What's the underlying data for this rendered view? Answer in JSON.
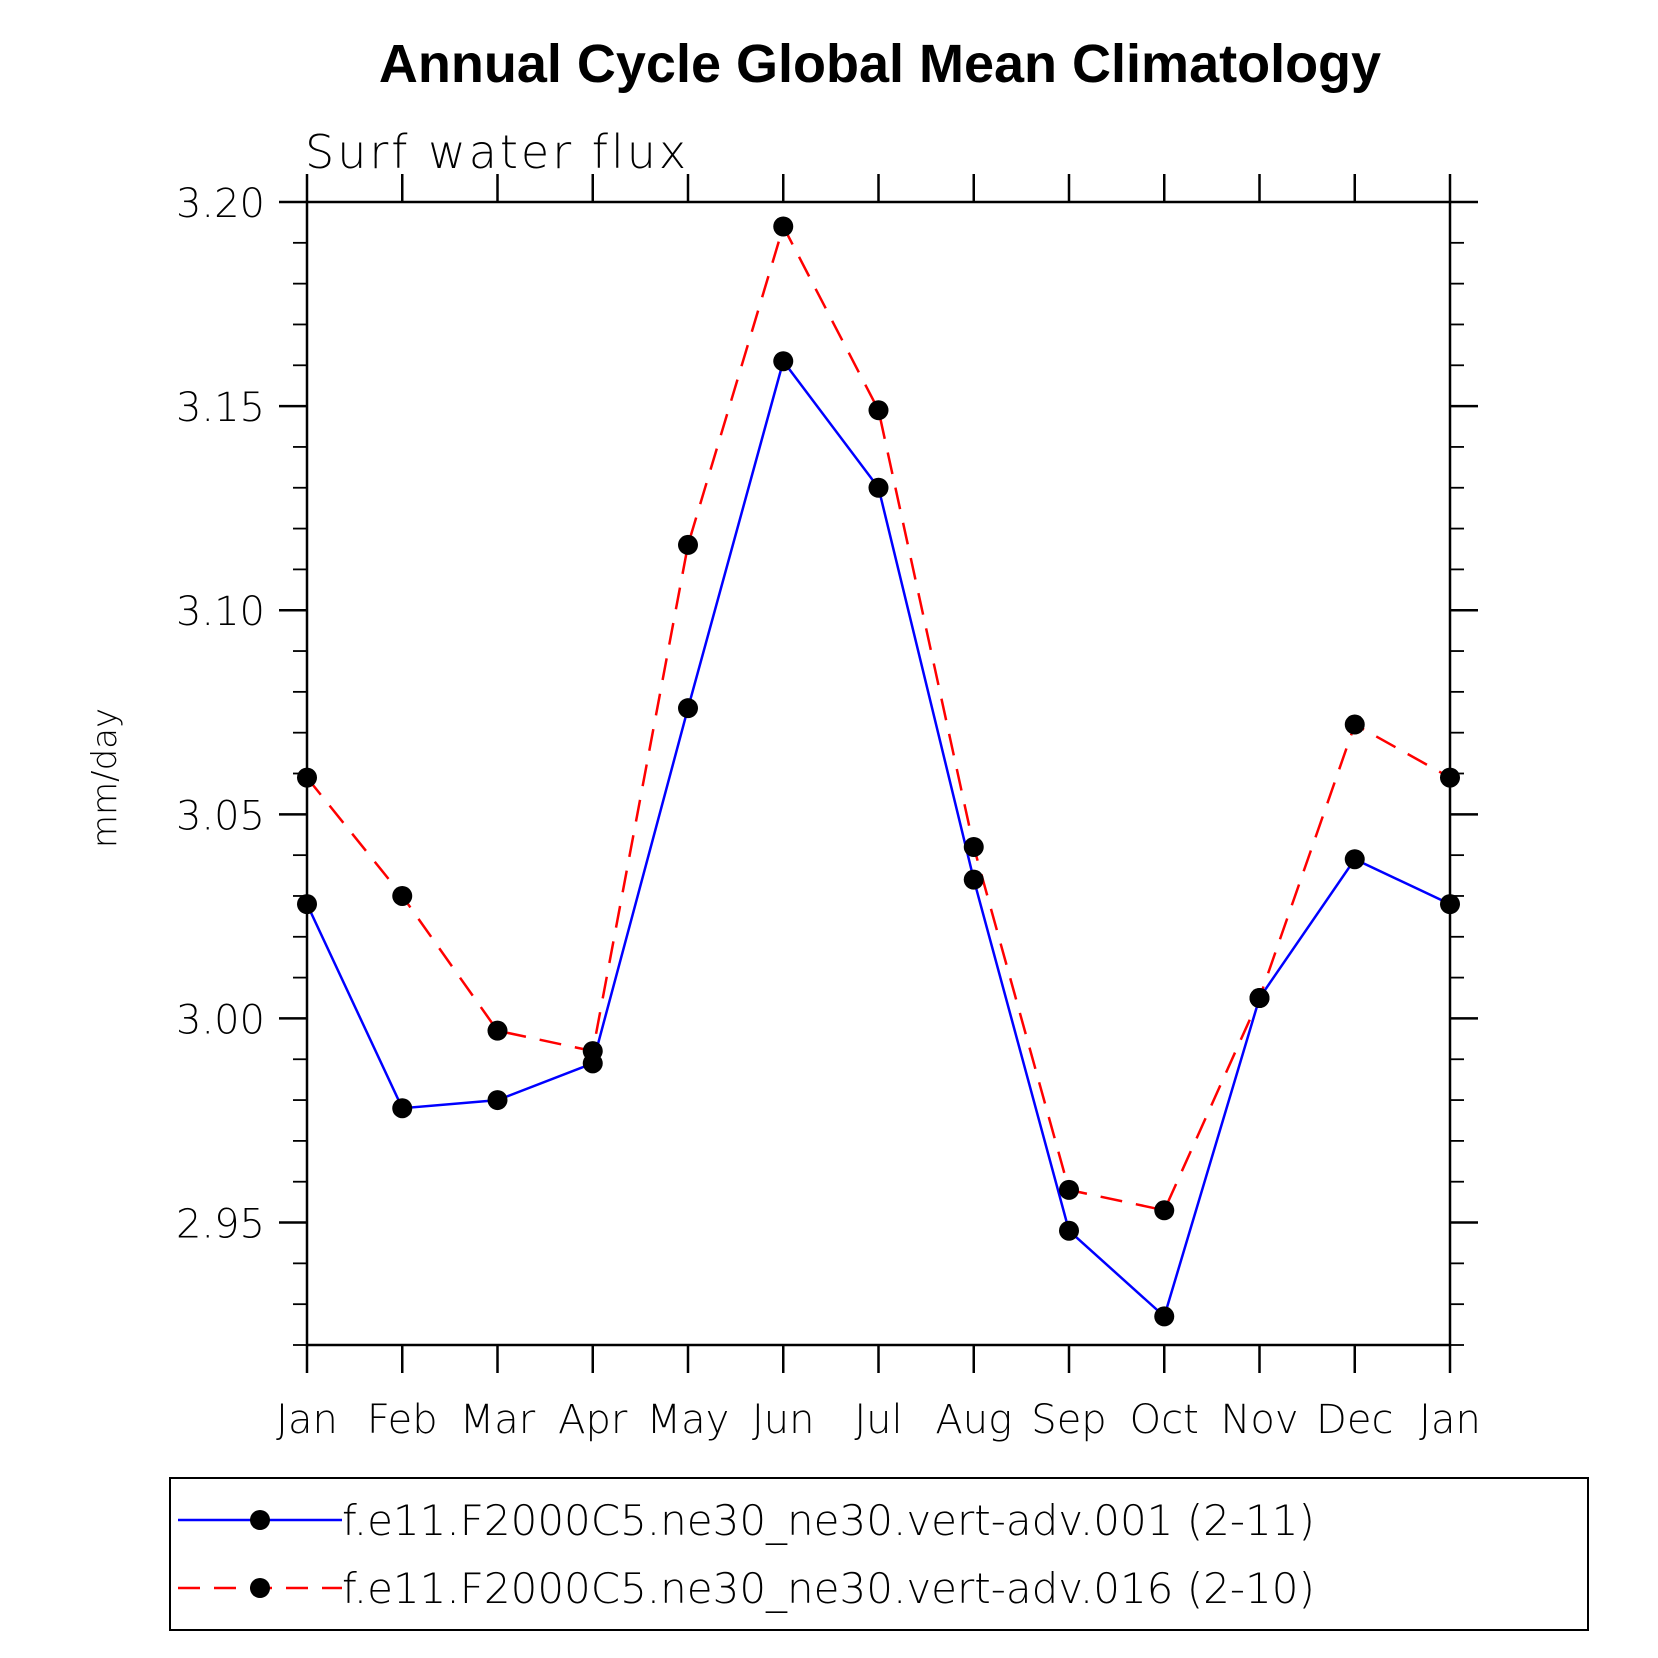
{
  "chart_data": {
    "type": "line",
    "title": "Annual Cycle Global Mean Climatology",
    "subtitle": "Surf water flux",
    "ylabel": "mm/day",
    "xlabel": "",
    "categories": [
      "Jan",
      "Feb",
      "Mar",
      "Apr",
      "May",
      "Jun",
      "Jul",
      "Aug",
      "Sep",
      "Oct",
      "Nov",
      "Dec",
      "Jan"
    ],
    "ylim": [
      2.92,
      3.2
    ],
    "yticks": [
      "3.20",
      "3.15",
      "3.10",
      "3.05",
      "3.00",
      "2.95"
    ],
    "ytick_values": [
      3.2,
      3.15,
      3.1,
      3.05,
      3.0,
      2.95
    ],
    "series": [
      {
        "name": "f.e11.F2000C5.ne30_ne30.vert-adv.001 (2-11)",
        "color": "#0000ff",
        "dash": "solid",
        "values": [
          3.028,
          2.978,
          2.98,
          2.989,
          3.076,
          3.161,
          3.13,
          3.034,
          2.948,
          2.927,
          3.005,
          3.039,
          3.028
        ]
      },
      {
        "name": "f.e11.F2000C5.ne30_ne30.vert-adv.016 (2-10)",
        "color": "#ff0000",
        "dash": "dashed",
        "values": [
          3.059,
          3.03,
          2.997,
          2.992,
          3.116,
          3.194,
          3.149,
          3.042,
          2.958,
          2.953,
          3.005,
          3.072,
          3.059
        ]
      }
    ]
  }
}
